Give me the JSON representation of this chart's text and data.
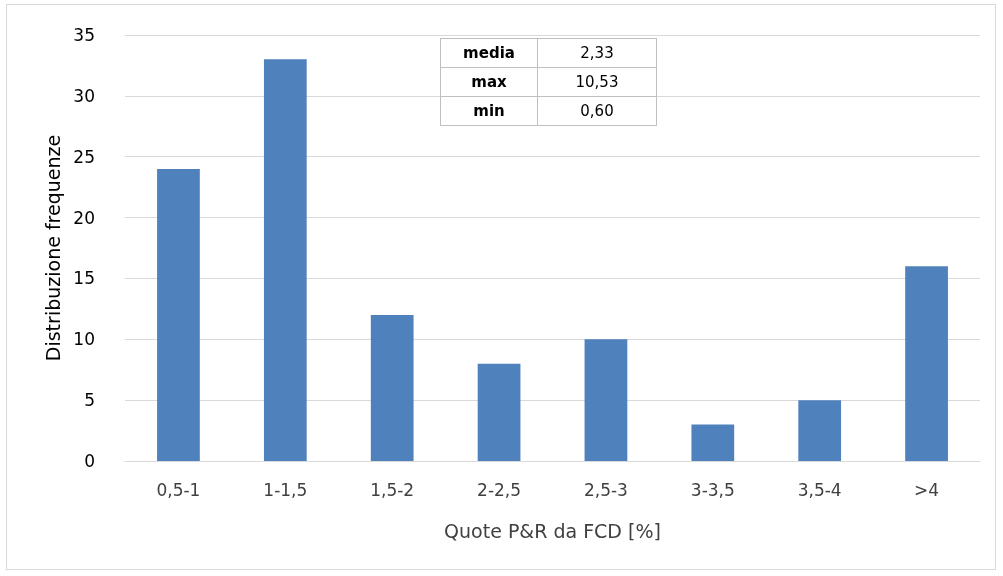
{
  "chart_data": {
    "type": "bar",
    "xlabel": "Quote P&R da FCD [%]",
    "ylabel": "Distribuzione frequenze",
    "categories": [
      "0,5-1",
      "1-1,5",
      "1,5-2",
      "2-2,5",
      "2,5-3",
      "3-3,5",
      "3,5-4",
      ">4"
    ],
    "values": [
      24,
      33,
      12,
      8,
      10,
      3,
      5,
      16
    ],
    "color": "#4f81bd",
    "ylim": [
      0,
      35
    ],
    "yticks": [
      0,
      5,
      10,
      15,
      20,
      25,
      30,
      35
    ],
    "grid": "y",
    "annotations": [
      "media",
      "2,33",
      "max",
      "10,53",
      "min",
      "0,60"
    ]
  }
}
